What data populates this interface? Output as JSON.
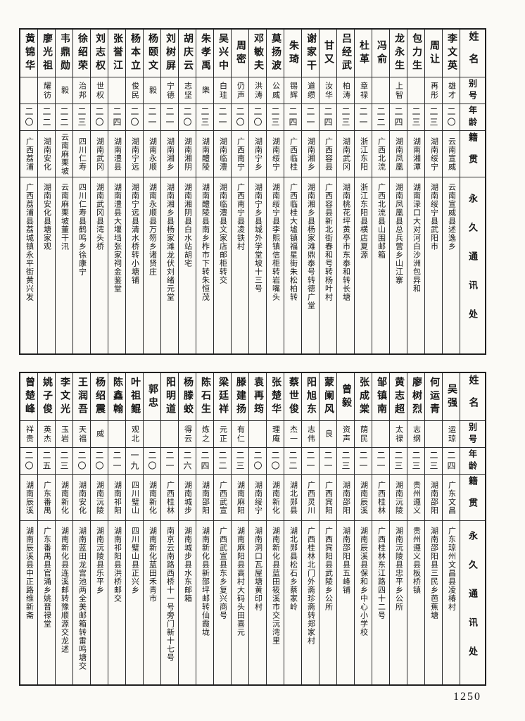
{
  "colors": {
    "paper": "#fbfaf6",
    "ink": "#161616",
    "grid": "#2b2b2b"
  },
  "page_number": "1250",
  "row_headers": [
    "姓名",
    "别号",
    "年龄",
    "籍贯",
    "永久通讯处"
  ],
  "tables": [
    {
      "name": "top-directory-table",
      "row_headers": [
        "姓名",
        "别号",
        "年龄",
        "籍贯",
        "永久通讯处"
      ],
      "people": [
        {
          "name": "李文英",
          "alias": "雄才",
          "age": "二〇",
          "origin": "云南宣威",
          "address": "云南宣威县述逸乡"
        },
        {
          "name": "周让",
          "alias": "再彤",
          "age": "二三",
          "origin": "湖南绥宁",
          "address": "湖南绥宁县武阳市"
        },
        {
          "name": "包力生",
          "alias": "",
          "age": "二三",
          "origin": "湖南湘潭",
          "address": "湖南渌口大对河白沙洲包异和"
        },
        {
          "name": "龙永生",
          "alias": "上智",
          "age": "二四",
          "origin": "湖南凤凰",
          "address": "湖南凤凰县总兵营乡山江寨"
        },
        {
          "name": "冯俞",
          "alias": "",
          "age": "二二",
          "origin": "广西北流",
          "address": "广西北流县山围邮箱"
        },
        {
          "name": "杜革",
          "alias": "章禄",
          "age": "二一",
          "origin": "浙江东阳",
          "address": "浙江东阳县横店夏源"
        },
        {
          "name": "吕经武",
          "alias": "柏涛",
          "age": "二三",
          "origin": "湖南武冈",
          "address": "湖南桃花坪黄亭市东泰和转长塘"
        },
        {
          "name": "甘又",
          "alias": "汝华",
          "age": "二四",
          "origin": "广西容县",
          "address": "广西容县新北街春和号转杨叶村"
        },
        {
          "name": "谢家干",
          "alias": "道缵",
          "age": "二一",
          "origin": "湖南湘乡",
          "address": "湖南湘乡县杨家滩鼎泰号转德广堂"
        },
        {
          "name": "朱琦",
          "alias": "锡辉",
          "age": "二四",
          "origin": "广西临桂",
          "address": "广西临桂大墟镇福星街朱松柏转"
        },
        {
          "name": "莫扬波",
          "alias": "公威",
          "age": "二三",
          "origin": "湖南绥宁",
          "address": "湖南绥宁县李熙镇信柜转岩嘴头"
        },
        {
          "name": "邓敏夫",
          "alias": "洪涛",
          "age": "二〇",
          "origin": "湖南宁乡",
          "address": "湖南宁乡县城外学堂坡十三号"
        },
        {
          "name": "周密",
          "alias": "仍声",
          "age": "二〇",
          "origin": "广西南宁",
          "address": "广西南宁县凌铁村"
        },
        {
          "name": "吴兴中",
          "alias": "白珪",
          "age": "二一",
          "origin": "湖南临澧",
          "address": "湖南临澧县文家店邮柜转交"
        },
        {
          "name": "朱孝禹",
          "alias": "樂",
          "age": "二三",
          "origin": "湖南醴陵",
          "address": "湖南醴陵县南乡柞市下转朱恒茂"
        },
        {
          "name": "胡庆云",
          "alias": "志坚",
          "age": "二〇",
          "origin": "湖南湘阴",
          "address": "湖南湘阴县白水站胡宅"
        },
        {
          "name": "刘树屏",
          "alias": "宁德",
          "age": "二一",
          "origin": "湖南湘乡",
          "address": "湖南湘乡县杨家滩龙伏刘绪元堂"
        },
        {
          "name": "杨颐文",
          "alias": "毅",
          "age": "二一",
          "origin": "湖南永顺",
          "address": "湖南永顺县万笏乡诸贤庄"
        },
        {
          "name": "杨本立",
          "alias": "俊民",
          "age": "二〇",
          "origin": "湖南宁远",
          "address": "湖南宁远县清水桥转小塘铺"
        },
        {
          "name": "张誉江",
          "alias": "",
          "age": "二四",
          "origin": "湖南澧县",
          "address": "湖南澧县大堰垱张家祠金鉴堂"
        },
        {
          "name": "刘志权",
          "alias": "世权",
          "age": "二〇",
          "origin": "湖南武冈",
          "address": "湖南武冈县湾头桥"
        },
        {
          "name": "徐绍荣",
          "alias": "治邦",
          "age": "二三",
          "origin": "四川仁寿",
          "address": "四川仁寿县鹤鸣乡徐康宁"
        },
        {
          "name": "韦鼎勋",
          "alias": "毅",
          "age": "二二",
          "origin": "云南麻栗坡",
          "address": "云南麻栗坡董干汛"
        },
        {
          "name": "廖光祖",
          "alias": "耀彷",
          "age": "二二",
          "origin": "湖南安化",
          "address": "湖南安化县塘家观"
        },
        {
          "name": "黄锦华",
          "alias": "",
          "age": "二〇",
          "origin": "广西荔浦",
          "address": "广西荔浦县荔城镇永平街黄兴发"
        }
      ]
    },
    {
      "name": "bottom-directory-table",
      "row_headers": [
        "姓名",
        "别号",
        "年龄",
        "籍贯",
        "永久通讯处"
      ],
      "people": [
        {
          "name": "吴强",
          "alias": "运琼",
          "age": "二四",
          "origin": "广东文昌",
          "address": "广东琼州文昌县凌椿村"
        },
        {
          "name": "何运青",
          "alias": "",
          "age": "二三",
          "origin": "湖南邵阳",
          "address": "湖南邵阳县三民乡芭蕉塘"
        },
        {
          "name": "廖树烈",
          "alias": "志纲",
          "age": "二三",
          "origin": "贵州遵义",
          "address": "贵州遵义县板桥镇"
        },
        {
          "name": "黄志超",
          "alias": "太禄",
          "age": "二三",
          "origin": "湖南沅陵",
          "address": "湖南沅陵县忠平乡公所"
        },
        {
          "name": "邹镇南",
          "alias": "",
          "age": "二一",
          "origin": "广西桂林",
          "address": "广西桂林东江路四十二号"
        },
        {
          "name": "张成棠",
          "alias": "荫民",
          "age": "二一",
          "origin": "湖南辰溪",
          "address": "湖南辰溪县保和乡中心小学校"
        },
        {
          "name": "曾毅",
          "alias": "资声",
          "age": "二三",
          "origin": "湖南邵阳",
          "address": "湖南邵阳县五峰铺"
        },
        {
          "name": "蒙阑风",
          "alias": "良",
          "age": "二一",
          "origin": "广西宾阳",
          "address": "广西宾阳县武陵乡公所"
        },
        {
          "name": "阳旭东",
          "alias": "志伟",
          "age": "二一",
          "origin": "广西灵川",
          "address": "广西桂林北门外斋珍斋转郑家村"
        },
        {
          "name": "蔡世俊",
          "alias": "杰一",
          "age": "二二",
          "origin": "湖北郧县",
          "address": "湖北郧县松石乡蔡家岭"
        },
        {
          "name": "张楚华",
          "alias": "理庵",
          "age": "二〇",
          "origin": "湖南新化",
          "address": "湖南新化县蓝田筱溪市交沅湾里"
        },
        {
          "name": "袁再筠",
          "alias": "",
          "age": "二〇",
          "origin": "湖南绥宁",
          "address": "湖南洞口瓦屋塘黄印村"
        },
        {
          "name": "滕建扬",
          "alias": "有仁",
          "age": "二三",
          "origin": "湖南麻阳",
          "address": "湖南麻阳县高村大码头田喜元"
        },
        {
          "name": "梁廷祥",
          "alias": "元正",
          "age": "二二",
          "origin": "广西武宣",
          "address": "广西武宣县东乡复兴商号"
        },
        {
          "name": "陈石生",
          "alias": "炼之",
          "age": "二四",
          "origin": "湖南邵阳",
          "address": "湖南新化县新邵坪邮转仙霞垅"
        },
        {
          "name": "杨滕蛟",
          "alias": "得云",
          "age": "二六",
          "origin": "湖南城步",
          "address": "湖南城步县水东邮箱"
        },
        {
          "name": "阳明道",
          "alias": "",
          "age": "二一",
          "origin": "广西桂林",
          "address": "南京云南路西桥十一号旁门新十七号"
        },
        {
          "name": "郭忠",
          "alias": "",
          "age": "二〇",
          "origin": "湖南新化",
          "address": "湖南新化蓝田禾青市"
        },
        {
          "name": "叶祖鲲",
          "alias": "观北",
          "age": "一九",
          "origin": "四川璧山",
          "address": "四川璧山县正兴乡"
        },
        {
          "name": "陈鑫翰",
          "alias": "",
          "age": "二一",
          "origin": "湖南祁阳",
          "address": "湖南祁阳县洪桥邮交"
        },
        {
          "name": "杨绍震",
          "alias": "威",
          "age": "二〇",
          "origin": "湖南沅陵",
          "address": "湖南沅陵县乐平乡"
        },
        {
          "name": "王润吾",
          "alias": "天福",
          "age": "二〇",
          "origin": "湖南安化",
          "address": "湖南蓝田龙宫池两全美邮箱转雷鸣塘交"
        },
        {
          "name": "李文光",
          "alias": "玉岩",
          "age": "二三",
          "origin": "湖南新化",
          "address": "湖南新化县连溪邮转豫顺源交龙述"
        },
        {
          "name": "姚子俊",
          "alias": "英杰",
          "age": "二五",
          "origin": "广东番禺",
          "address": "广东番禺县官涌乡姚晋禄堂"
        },
        {
          "name": "曾楚峰",
          "alias": "祥贵",
          "age": "二〇",
          "origin": "湖南辰溪",
          "address": "湖南辰溪县中正路维新斋"
        }
      ]
    }
  ]
}
